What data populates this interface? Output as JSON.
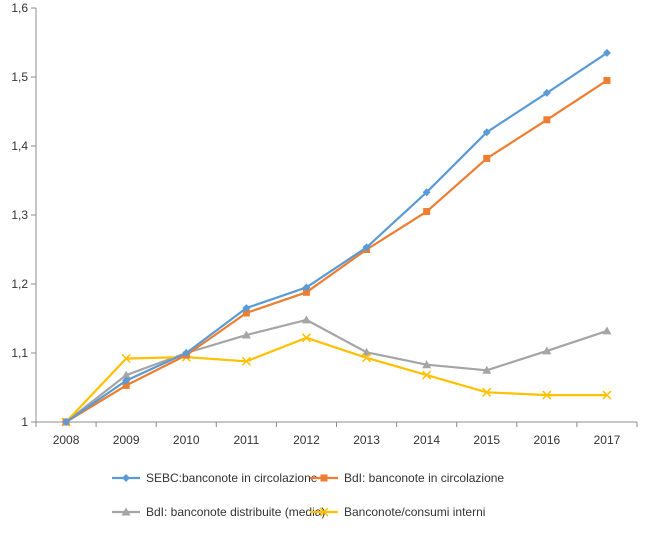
{
  "chart_data": {
    "type": "line",
    "title": "",
    "xlabel": "",
    "ylabel": "",
    "categories": [
      "2008",
      "2009",
      "2010",
      "2011",
      "2012",
      "2013",
      "2014",
      "2015",
      "2016",
      "2017"
    ],
    "ylim": [
      1,
      1.6
    ],
    "yticks": [
      "1",
      "1,1",
      "1,2",
      "1,3",
      "1,4",
      "1,5",
      "1,6"
    ],
    "grid": false,
    "legend_position": "bottom",
    "series": [
      {
        "name": "SEBC:banconote in circolazione",
        "color": "#5B9BD5",
        "marker": "diamond",
        "values": [
          1.0,
          1.06,
          1.1,
          1.165,
          1.195,
          1.253,
          1.333,
          1.42,
          1.477,
          1.535
        ]
      },
      {
        "name": "BdI: banconote in circolazione",
        "color": "#ED7D31",
        "marker": "square",
        "values": [
          1.0,
          1.053,
          1.097,
          1.158,
          1.188,
          1.25,
          1.305,
          1.382,
          1.438,
          1.495
        ]
      },
      {
        "name": "BdI: banconote distribuite (media)",
        "color": "#A5A5A5",
        "marker": "triangle",
        "values": [
          1.0,
          1.068,
          1.1,
          1.126,
          1.148,
          1.101,
          1.083,
          1.075,
          1.103,
          1.132
        ]
      },
      {
        "name": "Banconote/consumi interni",
        "color": "#FFC000",
        "marker": "x",
        "values": [
          1.0,
          1.092,
          1.094,
          1.088,
          1.122,
          1.093,
          1.068,
          1.043,
          1.039,
          1.039
        ]
      }
    ]
  }
}
